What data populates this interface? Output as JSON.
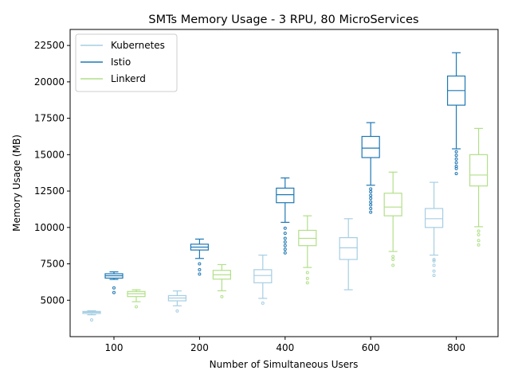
{
  "chart_data": {
    "type": "box",
    "title": "SMTs Memory Usage - 3 RPU, 80 MicroServices",
    "xlabel": "Number of Simultaneous Users",
    "ylabel": "Memory Usage (MB)",
    "categories": [
      "100",
      "200",
      "400",
      "600",
      "800"
    ],
    "ylim": [
      2500,
      23600
    ],
    "yticks": [
      "5000",
      "7500",
      "10000",
      "12500",
      "15000",
      "17500",
      "20000",
      "22500"
    ],
    "legend_position": "upper left",
    "series": [
      {
        "name": "Kubernetes",
        "color": "#a6cee3",
        "boxes": [
          {
            "whislo": 4000,
            "q1": 4090,
            "med": 4170,
            "q3": 4230,
            "whishi": 4280,
            "fliers": [
              3650
            ]
          },
          {
            "whislo": 4620,
            "q1": 4960,
            "med": 5150,
            "q3": 5320,
            "whishi": 5640,
            "fliers": [
              4260
            ]
          },
          {
            "whislo": 5130,
            "q1": 6200,
            "med": 6700,
            "q3": 7100,
            "whishi": 8100,
            "fliers": [
              4800
            ]
          },
          {
            "whislo": 5720,
            "q1": 7800,
            "med": 8600,
            "q3": 9300,
            "whishi": 10600,
            "fliers": []
          },
          {
            "whislo": 8100,
            "q1": 10000,
            "med": 10600,
            "q3": 11300,
            "whishi": 13100,
            "fliers": [
              7800,
              7700,
              7400,
              7000,
              6700
            ]
          }
        ]
      },
      {
        "name": "Istio",
        "color": "#1f78b4",
        "boxes": [
          {
            "whislo": 6430,
            "q1": 6520,
            "med": 6680,
            "q3": 6820,
            "whishi": 6950,
            "fliers": [
              5850,
              5530
            ]
          },
          {
            "whislo": 7870,
            "q1": 8450,
            "med": 8650,
            "q3": 8850,
            "whishi": 9200,
            "fliers": [
              7500,
              7100,
              6800
            ]
          },
          {
            "whislo": 10350,
            "q1": 11700,
            "med": 12250,
            "q3": 12700,
            "whishi": 13400,
            "fliers": [
              9950,
              9600,
              9250,
              9000,
              8750,
              8500,
              8250
            ]
          },
          {
            "whislo": 12900,
            "q1": 14800,
            "med": 15450,
            "q3": 16250,
            "whishi": 17200,
            "fliers": [
              12650,
              12450,
              12200,
              12000,
              11750,
              11550,
              11300,
              11050
            ]
          },
          {
            "whislo": 15400,
            "q1": 18400,
            "med": 19400,
            "q3": 20400,
            "whishi": 22000,
            "fliers": [
              15200,
              14950,
              14700,
              14450,
              14200,
              14050,
              13700
            ]
          }
        ]
      },
      {
        "name": "Linkerd",
        "color": "#b2df8a",
        "boxes": [
          {
            "whislo": 4900,
            "q1": 5250,
            "med": 5450,
            "q3": 5600,
            "whishi": 5720,
            "fliers": [
              4550
            ]
          },
          {
            "whislo": 5650,
            "q1": 6450,
            "med": 6750,
            "q3": 7050,
            "whishi": 7450,
            "fliers": [
              5250
            ]
          },
          {
            "whislo": 7250,
            "q1": 8750,
            "med": 9250,
            "q3": 9800,
            "whishi": 10800,
            "fliers": [
              6900,
              6500,
              6200
            ]
          },
          {
            "whislo": 8350,
            "q1": 10800,
            "med": 11400,
            "q3": 12350,
            "whishi": 13800,
            "fliers": [
              8000,
              7800,
              7400
            ]
          },
          {
            "whislo": 10050,
            "q1": 12850,
            "med": 13600,
            "q3": 15000,
            "whishi": 16800,
            "fliers": [
              9750,
              9500,
              9100,
              8800
            ]
          }
        ]
      }
    ]
  }
}
